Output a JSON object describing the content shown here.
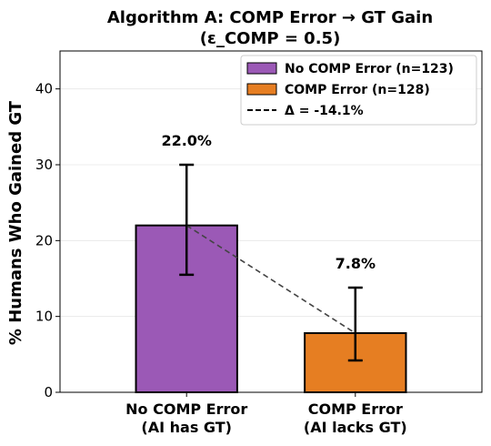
{
  "chart_data": {
    "type": "bar",
    "title": "Algorithm A: COMP Error → GT Gain",
    "subtitle": "(ε_COMP = 0.5)",
    "ylabel": "% Humans Who Gained GT",
    "xlabel": "",
    "ylim": [
      0,
      45
    ],
    "yticks": [
      0,
      10,
      20,
      30,
      40
    ],
    "grid": "y",
    "legend_position": "top-right",
    "categories": [
      "No COMP Error\n(AI has GT)",
      "COMP Error\n(AI lacks GT)"
    ],
    "series": [
      {
        "values": [
          22.0,
          7.8
        ],
        "value_labels": [
          "22.0%",
          "7.8%"
        ],
        "error_low": [
          15.5,
          4.2
        ],
        "error_high": [
          30.0,
          13.8
        ],
        "colors": [
          "#9b59b6",
          "#e67e22"
        ]
      }
    ],
    "legend": [
      {
        "label": "No COMP Error (n=123)",
        "kind": "patch",
        "color": "#9b59b6"
      },
      {
        "label": "COMP Error (n=128)",
        "kind": "patch",
        "color": "#e67e22"
      },
      {
        "label": "Δ = -14.1%",
        "kind": "dashed-line",
        "color": "#000000"
      }
    ],
    "connector": {
      "from": 22.0,
      "to": 7.8,
      "color": "#444444"
    }
  }
}
